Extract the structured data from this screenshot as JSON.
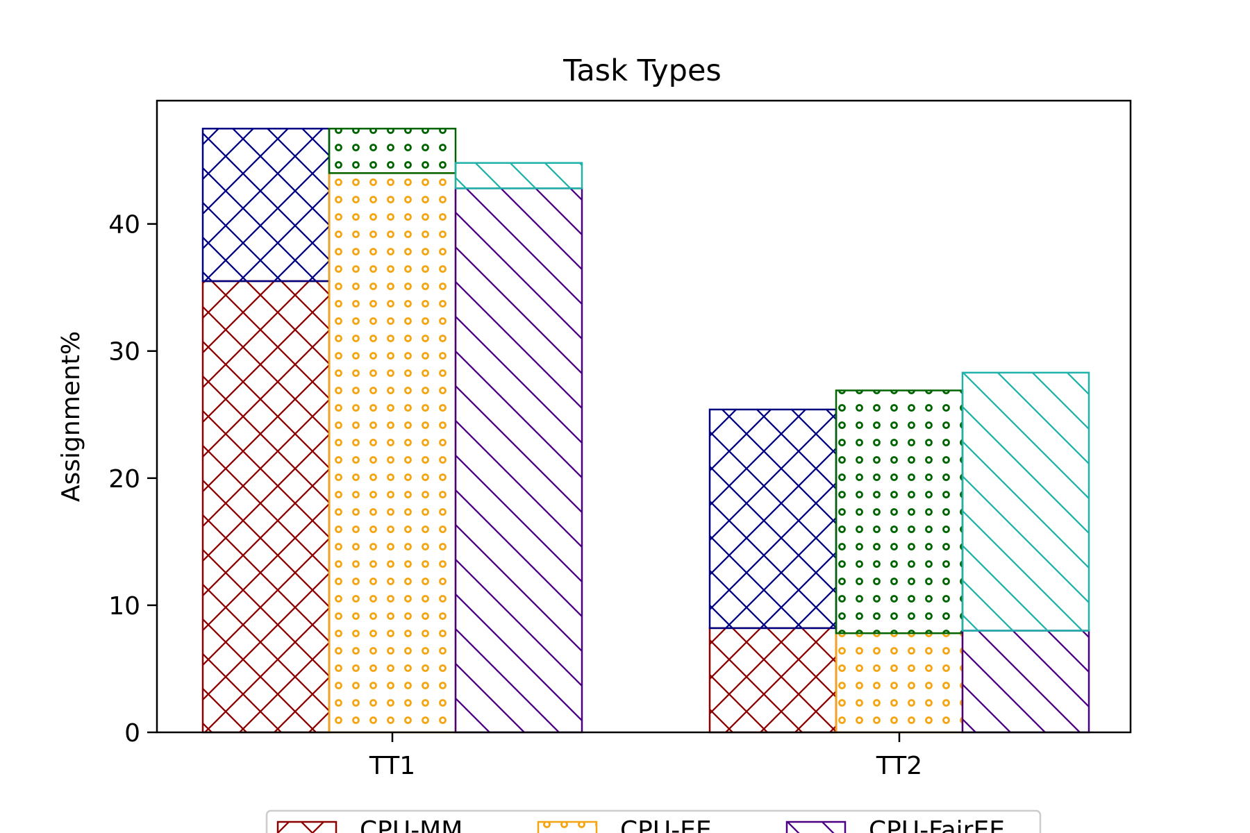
{
  "chart_data": {
    "type": "bar",
    "title": "Task Types",
    "xlabel": "",
    "ylabel": "Assignment%",
    "categories": [
      "TT1",
      "TT2"
    ],
    "ylim": [
      0,
      49.7
    ],
    "yticks": [
      0,
      10,
      20,
      30,
      40
    ],
    "stacked_groups": true,
    "series": [
      {
        "name": "CPU-MM",
        "group": "MM",
        "layer": "base",
        "values": [
          35.5,
          8.2
        ],
        "color": "#8b0000",
        "hatch": "crosshatch"
      },
      {
        "name": "",
        "group": "MM",
        "layer": "top",
        "values": [
          12.0,
          17.2
        ],
        "color": "#000080",
        "hatch": "crosshatch"
      },
      {
        "name": "CPU-EE",
        "group": "EE",
        "layer": "base",
        "values": [
          44.0,
          7.8
        ],
        "color": "#f5a511",
        "hatch": "rings"
      },
      {
        "name": "",
        "group": "EE",
        "layer": "top",
        "values": [
          3.5,
          19.1
        ],
        "color": "#006400",
        "hatch": "rings"
      },
      {
        "name": "CPU-FairEE",
        "group": "FairEE",
        "layer": "base",
        "values": [
          42.8,
          8.0
        ],
        "color": "#4b0082",
        "hatch": "diagonal"
      },
      {
        "name": "",
        "group": "FairEE",
        "layer": "top",
        "values": [
          2.0,
          20.3
        ],
        "color": "#20b2aa",
        "hatch": "diagonal"
      }
    ],
    "legend": {
      "position": "bottom-center",
      "entries": [
        {
          "label": "CPU-MM",
          "color": "#8b0000",
          "hatch": "crosshatch"
        },
        {
          "label": "CPU-EE",
          "color": "#f5a511",
          "hatch": "rings"
        },
        {
          "label": "CPU-FairEE",
          "color": "#4b0082",
          "hatch": "diagonal"
        }
      ]
    },
    "grid": false
  }
}
